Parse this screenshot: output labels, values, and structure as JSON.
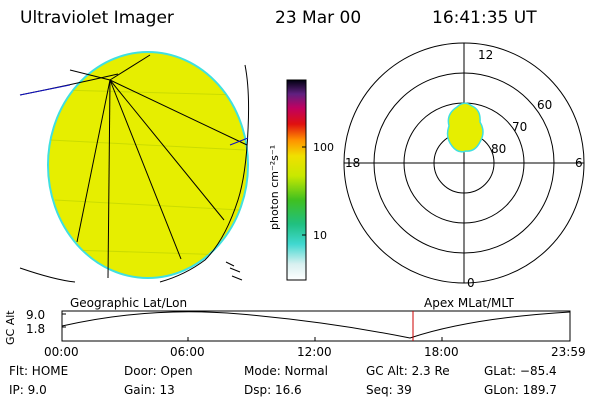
{
  "header": {
    "title": "Ultraviolet Imager",
    "date": "23 Mar 00",
    "time": "16:41:35 UT"
  },
  "colorbar": {
    "label": "photon cm⁻²s⁻¹",
    "tick_high": "100",
    "tick_low": "10"
  },
  "polar": {
    "top": "12",
    "left": "18",
    "right": "6",
    "bottom": "0",
    "ring_60": "60",
    "ring_70": "70",
    "ring_80": "80"
  },
  "timeline": {
    "ylabel": "GC Alt",
    "ytick_high": "9.0",
    "ytick_low": "1.8",
    "left_title": "Geographic Lat/Lon",
    "right_title": "Apex MLat/MLT",
    "xticks": [
      "00:00",
      "06:00",
      "12:00",
      "18:00",
      "23:59"
    ],
    "marker_color": "#cc0000"
  },
  "status": {
    "flt": "Flt: HOME",
    "door": "Door: Open",
    "mode": "Mode: Normal",
    "gc_alt": "GC Alt: 2.3 Re",
    "glat": "GLat: −85.4",
    "ip": "IP:  9.0",
    "gain": "Gain: 13",
    "dsp": "Dsp:   16.6",
    "seq": "Seq: 39",
    "glon": "GLon: 189.7"
  },
  "colors": {
    "fill": "#e6ee00",
    "edge": "#40e0e0"
  }
}
